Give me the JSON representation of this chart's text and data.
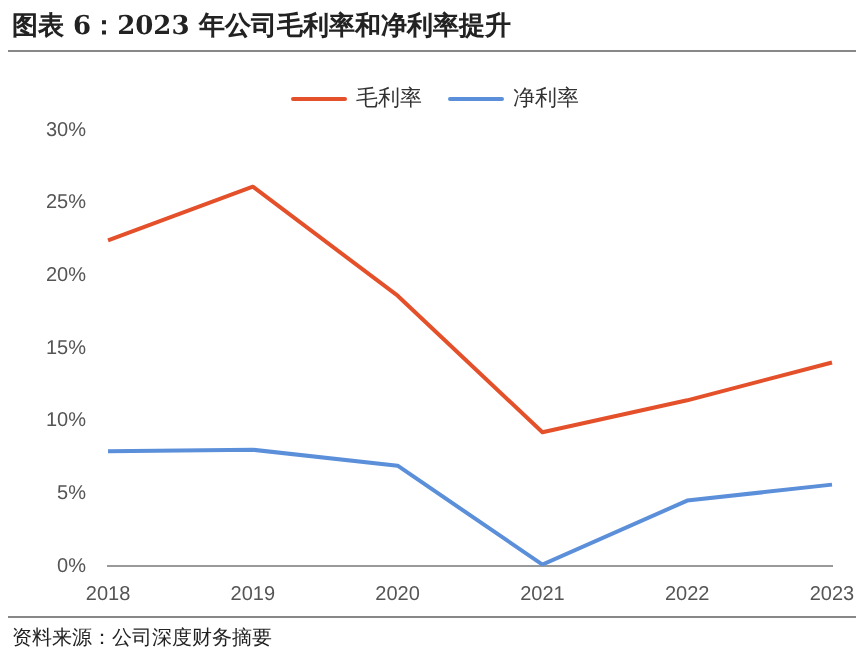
{
  "chart_data": {
    "type": "line",
    "title": "图表 6：2023 年公司毛利率和净利率提升",
    "categories": [
      "2018",
      "2019",
      "2020",
      "2021",
      "2022",
      "2023"
    ],
    "series": [
      {
        "name": "毛利率",
        "color": "#e4502a",
        "values": [
          22.4,
          26.1,
          18.6,
          9.2,
          11.4,
          14.0
        ]
      },
      {
        "name": "净利率",
        "color": "#5b8fd9",
        "values": [
          7.9,
          8.0,
          6.9,
          0.1,
          4.5,
          5.6
        ]
      }
    ],
    "ylim": [
      0,
      30
    ],
    "yticks": [
      {
        "value": 0,
        "label": "0%"
      },
      {
        "value": 5,
        "label": "5%"
      },
      {
        "value": 10,
        "label": "10%"
      },
      {
        "value": 15,
        "label": "15%"
      },
      {
        "value": 20,
        "label": "20%"
      },
      {
        "value": 25,
        "label": "25%"
      },
      {
        "value": 30,
        "label": "30%"
      }
    ],
    "legend": "top",
    "grid": false,
    "marker": "none",
    "line_style": "solid",
    "annotations": [
      "资料来源：公司深度财务摘要"
    ]
  }
}
